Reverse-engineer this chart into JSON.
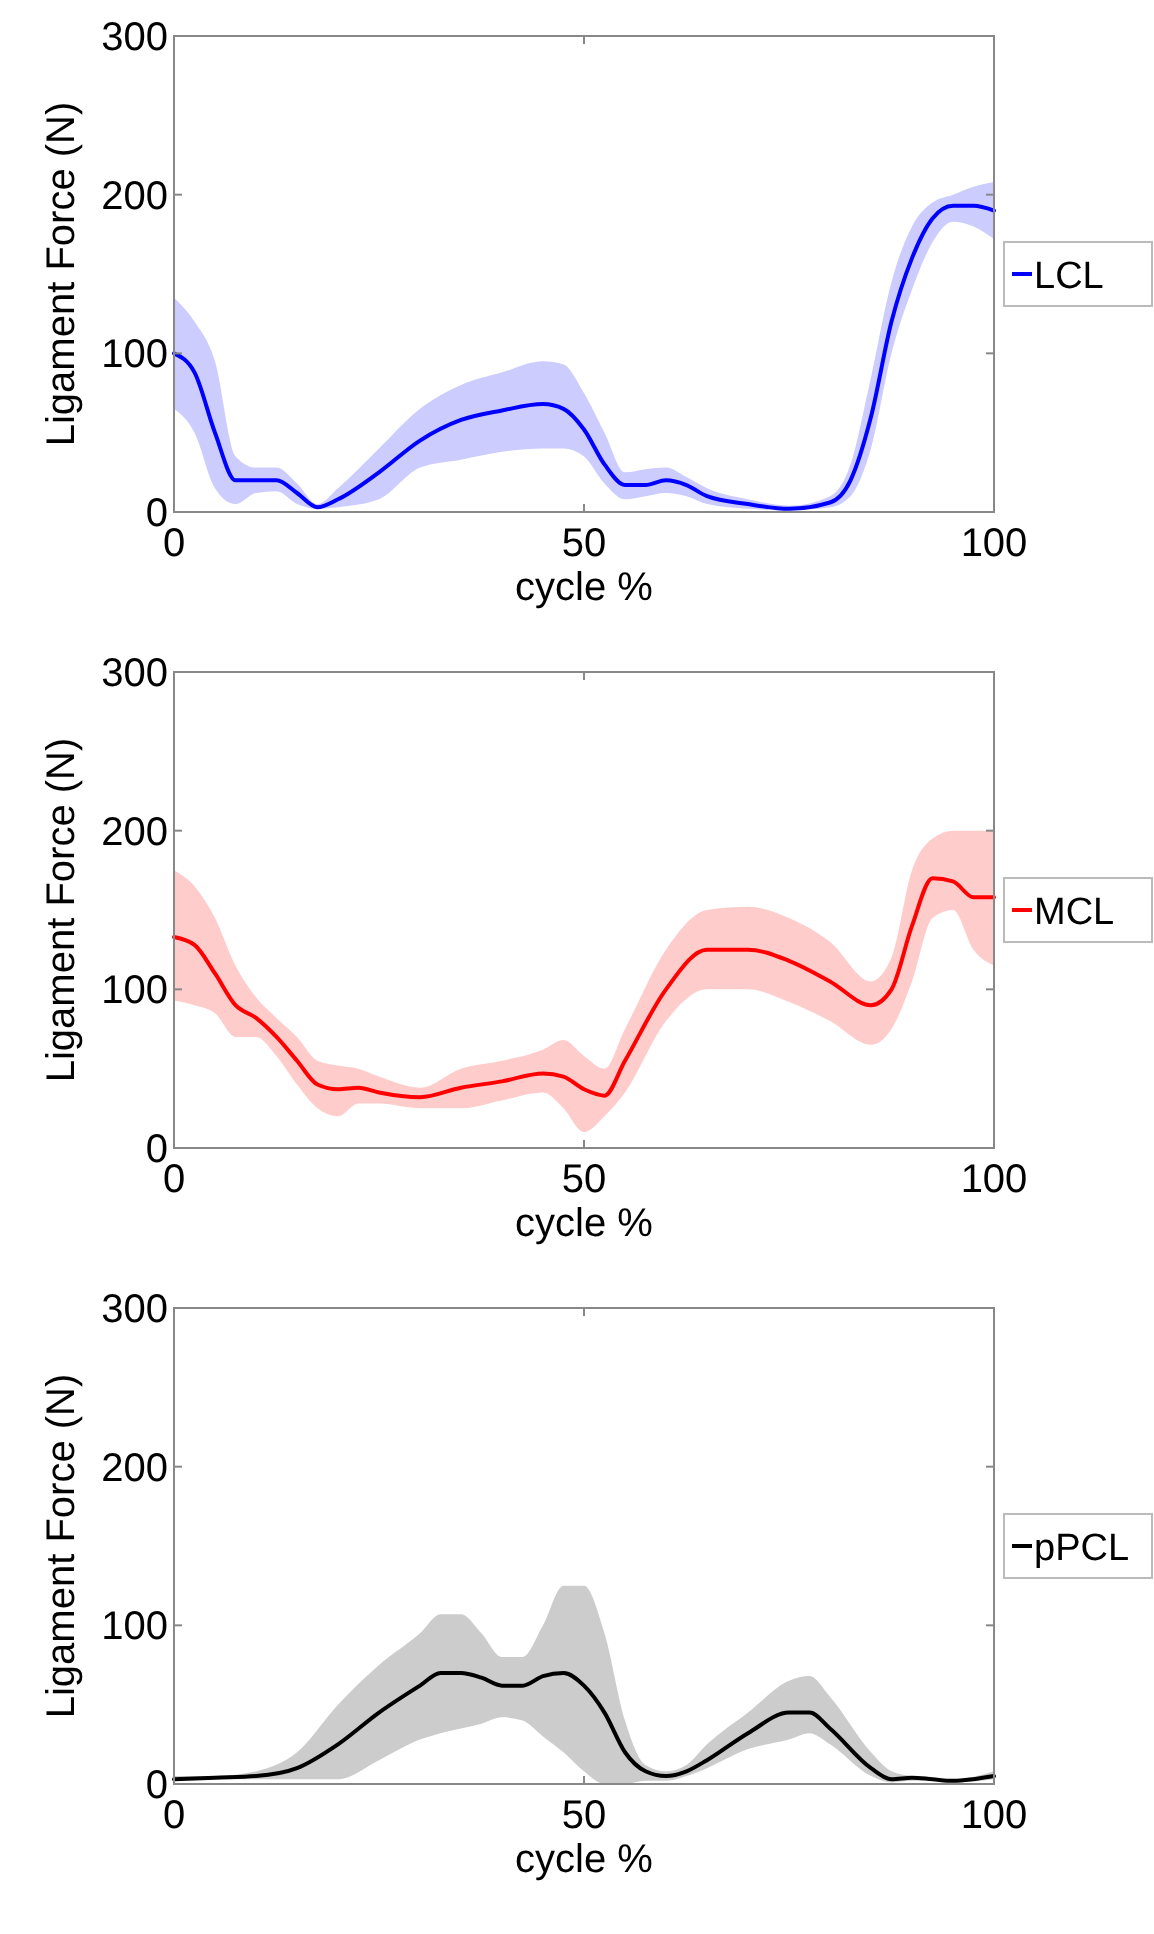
{
  "chart_data": [
    {
      "type": "line",
      "xlabel": "cycle %",
      "ylabel": "Ligament Force (N)",
      "xlim": [
        0,
        100
      ],
      "ylim": [
        0,
        300
      ],
      "xticks": [
        0,
        50,
        100
      ],
      "yticks": [
        0,
        100,
        200,
        300
      ],
      "legend": "right",
      "grid": false,
      "series": [
        {
          "name": "LCL",
          "color": "#0000ff",
          "x": [
            0,
            2.5,
            5,
            7.5,
            10,
            12.5,
            15,
            17.5,
            20,
            25,
            30,
            35,
            40,
            45,
            47.5,
            50,
            52.5,
            55,
            57.5,
            60,
            62.5,
            65,
            70,
            75,
            80,
            82.5,
            85,
            87.5,
            90,
            92.5,
            95,
            97.5,
            100
          ],
          "values": [
            100,
            88,
            50,
            20,
            20,
            20,
            12,
            3,
            8,
            25,
            45,
            58,
            64,
            68,
            65,
            52,
            30,
            17,
            17,
            20,
            17,
            10,
            5,
            2,
            6,
            20,
            60,
            120,
            160,
            185,
            193,
            193,
            190
          ],
          "lower": [
            65,
            50,
            15,
            5,
            12,
            13,
            5,
            2,
            3,
            8,
            28,
            33,
            38,
            40,
            40,
            35,
            18,
            8,
            10,
            12,
            10,
            5,
            2,
            1,
            3,
            10,
            40,
            100,
            140,
            170,
            183,
            180,
            172
          ],
          "upper": [
            135,
            120,
            95,
            35,
            28,
            28,
            18,
            5,
            15,
            40,
            65,
            80,
            88,
            95,
            93,
            75,
            50,
            25,
            27,
            28,
            22,
            15,
            8,
            4,
            10,
            30,
            85,
            145,
            180,
            195,
            200,
            205,
            208
          ]
        }
      ]
    },
    {
      "type": "line",
      "xlabel": "cycle %",
      "ylabel": "Ligament Force (N)",
      "xlim": [
        0,
        100
      ],
      "ylim": [
        0,
        300
      ],
      "xticks": [
        0,
        50,
        100
      ],
      "yticks": [
        0,
        100,
        200,
        300
      ],
      "legend": "right",
      "grid": false,
      "series": [
        {
          "name": "MCL",
          "color": "#ff0000",
          "x": [
            0,
            2.5,
            5,
            7.5,
            10,
            12.5,
            15,
            17.5,
            20,
            22.5,
            25,
            30,
            35,
            40,
            45,
            47.5,
            50,
            52.5,
            55,
            60,
            65,
            70,
            75,
            80,
            85,
            87.5,
            90,
            92.5,
            95,
            97.5,
            100
          ],
          "values": [
            133,
            128,
            110,
            90,
            82,
            70,
            55,
            40,
            37,
            38,
            35,
            32,
            38,
            42,
            47,
            45,
            37,
            33,
            55,
            100,
            125,
            125,
            118,
            105,
            90,
            100,
            140,
            170,
            168,
            158,
            158
          ],
          "lower": [
            93,
            90,
            85,
            70,
            70,
            58,
            40,
            25,
            20,
            28,
            28,
            25,
            25,
            30,
            35,
            25,
            10,
            20,
            35,
            80,
            100,
            100,
            92,
            80,
            65,
            75,
            105,
            145,
            150,
            125,
            115
          ],
          "upper": [
            175,
            165,
            145,
            115,
            95,
            82,
            70,
            55,
            52,
            50,
            45,
            38,
            50,
            55,
            62,
            68,
            58,
            50,
            75,
            125,
            150,
            152,
            145,
            130,
            105,
            120,
            175,
            195,
            200,
            200,
            200
          ]
        }
      ]
    },
    {
      "type": "line",
      "xlabel": "cycle %",
      "ylabel": "Ligament Force (N)",
      "xlim": [
        0,
        100
      ],
      "ylim": [
        0,
        300
      ],
      "xticks": [
        0,
        50,
        100
      ],
      "yticks": [
        0,
        100,
        200,
        300
      ],
      "legend": "right",
      "grid": false,
      "series": [
        {
          "name": "pPCL",
          "color": "#000000",
          "x": [
            0,
            5,
            10,
            15,
            20,
            25,
            30,
            32.5,
            35,
            37.5,
            40,
            42.5,
            45,
            47.5,
            50,
            52.5,
            55,
            57.5,
            60,
            62.5,
            65,
            70,
            75,
            77.5,
            80,
            85,
            87.5,
            90,
            92.5,
            95,
            100
          ],
          "values": [
            3,
            4,
            5,
            10,
            25,
            45,
            62,
            70,
            70,
            67,
            62,
            62,
            68,
            70,
            62,
            45,
            20,
            8,
            5,
            8,
            15,
            32,
            45,
            45,
            35,
            10,
            3,
            4,
            3,
            2,
            5
          ],
          "lower": [
            2,
            3,
            3,
            3,
            3,
            15,
            28,
            32,
            35,
            38,
            42,
            40,
            30,
            20,
            8,
            0,
            0,
            2,
            2,
            5,
            10,
            22,
            28,
            32,
            25,
            5,
            1,
            2,
            2,
            1,
            3
          ],
          "upper": [
            5,
            5,
            8,
            20,
            50,
            75,
            95,
            107,
            107,
            95,
            80,
            80,
            100,
            125,
            125,
            95,
            40,
            12,
            8,
            12,
            25,
            45,
            65,
            68,
            55,
            20,
            8,
            5,
            4,
            3,
            8
          ]
        }
      ]
    }
  ]
}
